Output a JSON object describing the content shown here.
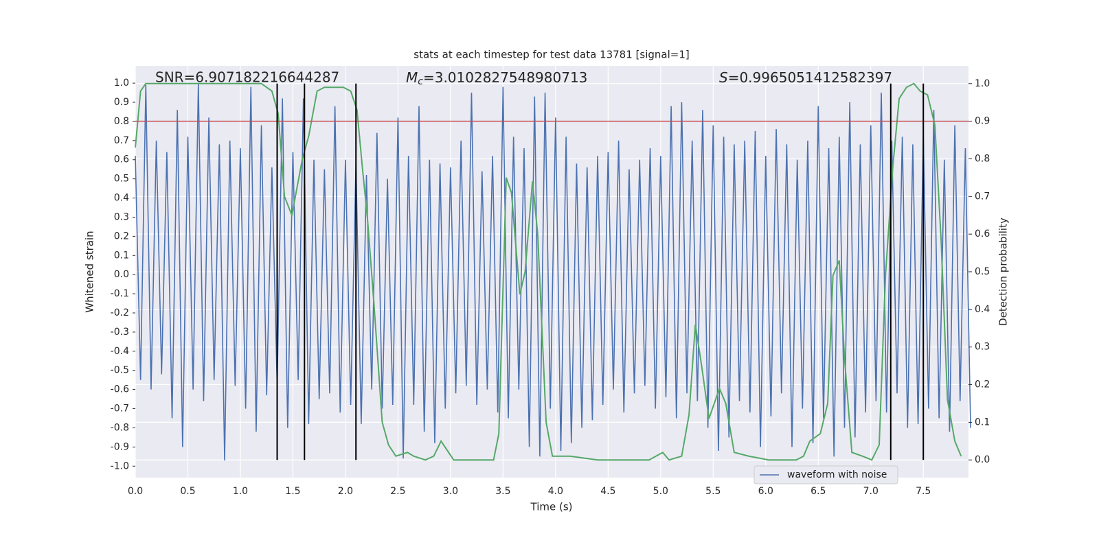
{
  "chart_data": {
    "type": "line",
    "title": "stats at each timestep for test data 13781 [signal=1]",
    "x_label": "Time (s)",
    "y_label": "Whitened strain",
    "y2_label": "Detection probability",
    "annotations": [
      {
        "text": "SNR=6.907182216644287"
      },
      {
        "symbol": "M",
        "sub": "c",
        "text": "=3.0102827548980713"
      },
      {
        "symbol": "S",
        "text": "=0.9965051412582397"
      }
    ],
    "xlim": [
      0,
      7.93
    ],
    "ylim": [
      -1.06,
      1.09
    ],
    "y2lim": [
      -0.047,
      1.047
    ],
    "xticks": [
      {
        "value": 0,
        "label": "0.0"
      },
      0.5,
      {
        "value": 1,
        "label": "1.0"
      },
      1.5,
      {
        "value": 2,
        "label": "2.0"
      },
      2.5,
      {
        "value": 3,
        "label": "3.0"
      },
      3.5,
      {
        "value": 4,
        "label": "4.0"
      },
      4.5,
      {
        "value": 5,
        "label": "5.0"
      },
      5.5,
      {
        "value": 6,
        "label": "6.0"
      },
      6.5,
      {
        "value": 7,
        "label": "7.0"
      },
      7.5
    ],
    "yticks": [
      {
        "value": -1,
        "label": "-1.0"
      },
      -0.9,
      -0.8,
      -0.7,
      -0.6,
      -0.5,
      -0.4,
      -0.3,
      -0.2,
      -0.1,
      {
        "value": 0,
        "label": "0.0"
      },
      0.1,
      0.2,
      0.3,
      0.4,
      0.5,
      0.6,
      0.7,
      0.8,
      0.9,
      {
        "value": 1,
        "label": "1.0"
      }
    ],
    "y2ticks": [
      {
        "value": 0,
        "label": "0.0"
      },
      0.1,
      0.2,
      0.3,
      0.4,
      0.5,
      0.6,
      0.7,
      0.8,
      0.9,
      {
        "value": 1,
        "label": "1.0"
      }
    ],
    "grid": true,
    "legend": "lower right",
    "hline": {
      "value": 0.9,
      "axis": "y2",
      "color": "#c44e52"
    },
    "vlines": {
      "x": [
        1.35,
        1.61,
        2.1,
        7.19,
        7.5
      ],
      "color": "#000000"
    },
    "series": [
      {
        "name": "waveform with noise",
        "color": "#4c72b0",
        "x": [
          0,
          0.05,
          0.1,
          0.15,
          0.2,
          0.25,
          0.3,
          0.35,
          0.4,
          0.45,
          0.5,
          0.55,
          0.6,
          0.65,
          0.7,
          0.75,
          0.8,
          0.85,
          0.9,
          0.95,
          1,
          1.05,
          1.1,
          1.15,
          1.2,
          1.25,
          1.3,
          1.35,
          1.4,
          1.45,
          1.5,
          1.55,
          1.6,
          1.65,
          1.7,
          1.75,
          1.8,
          1.85,
          1.9,
          1.95,
          2,
          2.05,
          2.1,
          2.15,
          2.2,
          2.25,
          2.3,
          2.35,
          2.4,
          2.45,
          2.5,
          2.55,
          2.6,
          2.65,
          2.7,
          2.75,
          2.8,
          2.85,
          2.9,
          2.95,
          3,
          3.05,
          3.1,
          3.15,
          3.2,
          3.25,
          3.3,
          3.35,
          3.4,
          3.45,
          3.5,
          3.55,
          3.6,
          3.65,
          3.7,
          3.75,
          3.8,
          3.85,
          3.9,
          3.95,
          4,
          4.05,
          4.1,
          4.15,
          4.2,
          4.25,
          4.3,
          4.35,
          4.4,
          4.45,
          4.5,
          4.55,
          4.6,
          4.65,
          4.7,
          4.75,
          4.8,
          4.85,
          4.9,
          4.95,
          5,
          5.05,
          5.1,
          5.15,
          5.2,
          5.25,
          5.3,
          5.35,
          5.4,
          5.45,
          5.5,
          5.55,
          5.6,
          5.65,
          5.7,
          5.75,
          5.8,
          5.85,
          5.9,
          5.95,
          6,
          6.05,
          6.1,
          6.15,
          6.2,
          6.25,
          6.3,
          6.35,
          6.4,
          6.45,
          6.5,
          6.55,
          6.6,
          6.65,
          6.7,
          6.75,
          6.8,
          6.85,
          6.9,
          6.95,
          7,
          7.05,
          7.1,
          7.15,
          7.2,
          7.25,
          7.3,
          7.35,
          7.4,
          7.45,
          7.5,
          7.55,
          7.6,
          7.65,
          7.7,
          7.75,
          7.8,
          7.85,
          7.9,
          7.95
        ],
        "values": [
          0.62,
          -0.55,
          0.99,
          -0.6,
          0.7,
          -0.52,
          0.64,
          -0.75,
          0.86,
          -0.9,
          0.72,
          -0.6,
          1.0,
          -0.66,
          0.82,
          -0.55,
          0.68,
          -0.97,
          0.7,
          -0.58,
          0.66,
          -0.7,
          0.98,
          -0.82,
          0.78,
          -0.63,
          0.56,
          -0.58,
          0.92,
          -0.8,
          0.64,
          -0.55,
          0.92,
          -0.78,
          0.6,
          -0.65,
          0.55,
          -0.62,
          0.88,
          -0.72,
          0.6,
          -0.68,
          0.58,
          -0.78,
          0.52,
          -0.6,
          0.74,
          -0.7,
          0.5,
          -0.68,
          0.82,
          -0.96,
          0.62,
          -0.68,
          0.88,
          -0.82,
          0.6,
          -0.88,
          0.58,
          -0.7,
          0.56,
          -0.62,
          0.7,
          -0.58,
          0.95,
          -0.68,
          0.54,
          -0.6,
          0.62,
          -0.72,
          0.98,
          -0.75,
          0.72,
          -0.6,
          0.66,
          -0.9,
          0.93,
          -0.95,
          0.95,
          -0.7,
          0.82,
          -0.92,
          0.72,
          -0.88,
          0.58,
          -0.8,
          0.56,
          -0.76,
          0.62,
          -0.68,
          0.64,
          -0.6,
          0.7,
          -0.72,
          0.55,
          -0.62,
          0.6,
          -0.58,
          0.66,
          -0.7,
          0.62,
          -0.64,
          0.88,
          -0.75,
          0.9,
          -0.62,
          0.7,
          -0.66,
          0.86,
          -0.8,
          0.78,
          -0.92,
          0.72,
          -0.85,
          0.68,
          -0.66,
          0.7,
          -0.72,
          0.75,
          -0.9,
          0.62,
          -0.74,
          0.76,
          -0.62,
          0.68,
          -0.9,
          0.6,
          -0.7,
          0.7,
          -0.88,
          0.88,
          -0.75,
          0.66,
          -0.95,
          0.72,
          -0.8,
          0.9,
          -0.85,
          0.68,
          -0.72,
          0.78,
          -0.66,
          0.95,
          -0.72,
          0.7,
          -0.62,
          0.72,
          -0.8,
          0.68,
          -0.78,
          0.72,
          -0.7,
          0.86,
          -0.75,
          0.6,
          -0.82,
          0.78,
          -0.66,
          0.66,
          -0.8
        ]
      },
      {
        "color": "#55a868",
        "axis": "y2",
        "x": [
          0,
          0.05,
          0.1,
          0.3,
          0.6,
          0.9,
          1.2,
          1.25,
          1.3,
          1.36,
          1.42,
          1.49,
          1.59,
          1.65,
          1.73,
          1.8,
          1.92,
          1.98,
          2.05,
          2.11,
          2.16,
          2.21,
          2.27,
          2.35,
          2.41,
          2.48,
          2.59,
          2.65,
          2.76,
          2.84,
          2.91,
          3.03,
          3.16,
          3.32,
          3.41,
          3.46,
          3.53,
          3.58,
          3.66,
          3.71,
          3.78,
          3.83,
          3.91,
          3.97,
          4.14,
          4.4,
          4.73,
          4.89,
          5.02,
          5.08,
          5.2,
          5.27,
          5.33,
          5.39,
          5.46,
          5.56,
          5.62,
          5.7,
          5.84,
          6.03,
          6.29,
          6.36,
          6.42,
          6.52,
          6.59,
          6.64,
          6.7,
          6.75,
          6.82,
          6.92,
          7.01,
          7.08,
          7.14,
          7.21,
          7.27,
          7.34,
          7.41,
          7.47,
          7.54,
          7.61,
          7.67,
          7.73,
          7.8,
          7.86
        ],
        "values": [
          0.83,
          0.98,
          1.0,
          1.0,
          1.0,
          1.0,
          1.0,
          0.99,
          0.98,
          0.92,
          0.7,
          0.65,
          0.8,
          0.86,
          0.98,
          0.99,
          0.99,
          0.99,
          0.98,
          0.93,
          0.78,
          0.64,
          0.42,
          0.1,
          0.04,
          0.01,
          0.02,
          0.01,
          0.0,
          0.01,
          0.05,
          0.0,
          0.0,
          0.0,
          0.0,
          0.07,
          0.75,
          0.71,
          0.44,
          0.5,
          0.74,
          0.6,
          0.1,
          0.01,
          0.01,
          0.0,
          0.0,
          0.0,
          0.02,
          0.0,
          0.01,
          0.12,
          0.36,
          0.25,
          0.11,
          0.19,
          0.15,
          0.02,
          0.01,
          0.0,
          0.0,
          0.01,
          0.05,
          0.07,
          0.15,
          0.49,
          0.53,
          0.27,
          0.02,
          0.01,
          0.0,
          0.04,
          0.49,
          0.78,
          0.96,
          0.99,
          1.0,
          0.98,
          0.97,
          0.89,
          0.58,
          0.16,
          0.05,
          0.01
        ]
      }
    ]
  }
}
